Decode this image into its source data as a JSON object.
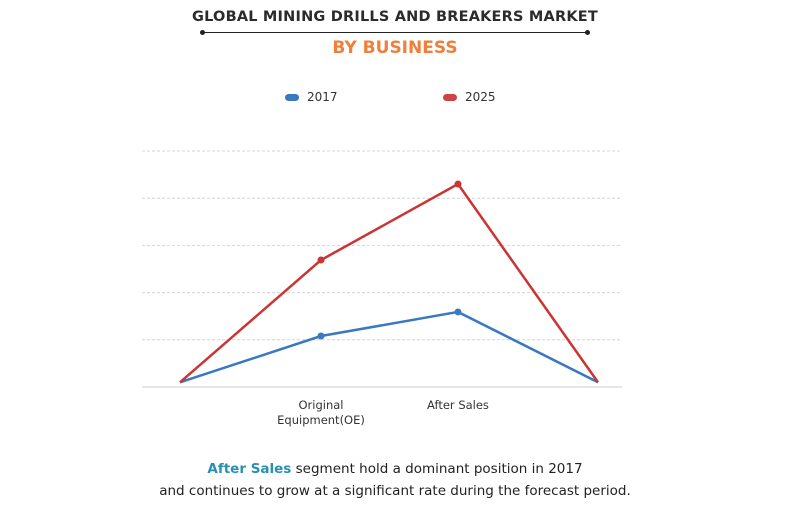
{
  "title": "GLOBAL MINING DRILLS AND BREAKERS MARKET",
  "subtitle": "BY BUSINESS",
  "footer": {
    "highlight": "After Sales",
    "line1_rest": " segment hold a dominant position in 2017",
    "line2": "and continues to grow at a significant rate during the forecast period."
  },
  "chart_data": {
    "type": "line",
    "categories": [
      "",
      "Original Equipment(OE)",
      "After Sales",
      ""
    ],
    "category_lines": [
      [
        "",
        ""
      ],
      [
        "Original",
        "Equipment(OE)"
      ],
      [
        "After Sales",
        ""
      ],
      [
        "",
        ""
      ]
    ],
    "series": [
      {
        "name": "2017",
        "color": "#3a78c2",
        "values": [
          0.1,
          1.08,
          1.59,
          0.1
        ]
      },
      {
        "name": "2025",
        "color": "#cc3333",
        "values": [
          0.1,
          2.69,
          4.3,
          0.1
        ]
      }
    ],
    "ylim": [
      0,
      5
    ],
    "grid": true,
    "legend": "top-center",
    "xlabel": "",
    "ylabel": ""
  }
}
